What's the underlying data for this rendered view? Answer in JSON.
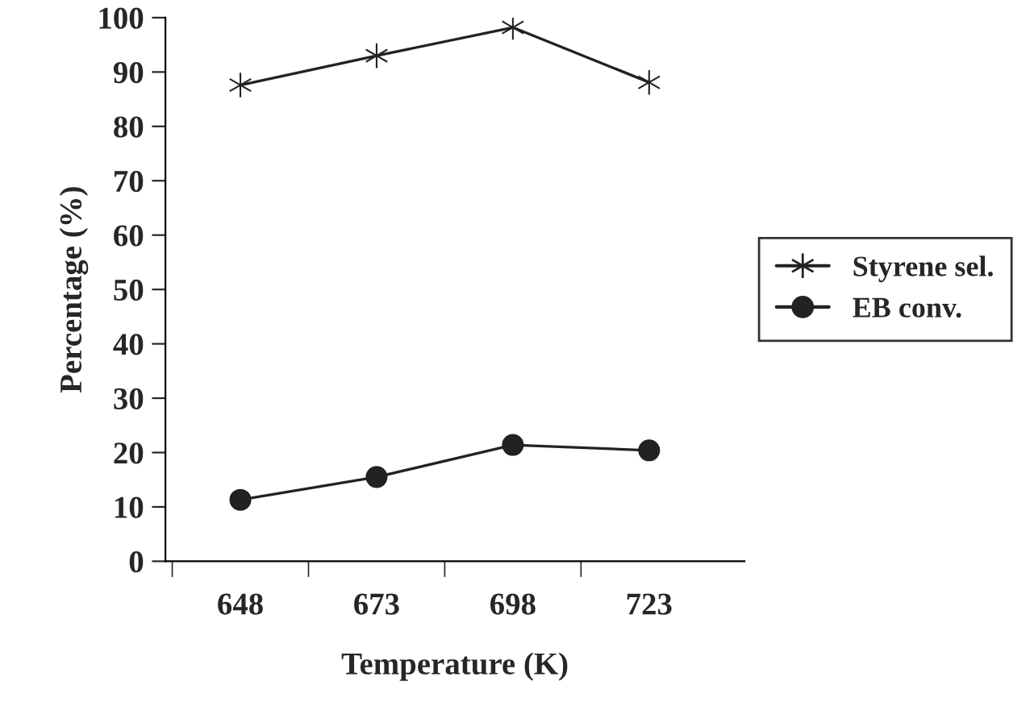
{
  "chart_data": {
    "type": "line",
    "xlabel": "Temperature (K)",
    "ylabel": "Percentage (%)",
    "categories": [
      "648",
      "673",
      "698",
      "723"
    ],
    "series": [
      {
        "name": "Styrene sel.",
        "color": "#222222",
        "marker": "cross",
        "values": [
          87.6,
          93.0,
          98.2,
          88.1
        ]
      },
      {
        "name": "EB conv.",
        "color": "#222222",
        "marker": "circle",
        "values": [
          11.3,
          15.5,
          21.4,
          20.4
        ]
      }
    ],
    "ylim": [
      0,
      100
    ],
    "yticks": [
      0,
      10,
      20,
      30,
      40,
      50,
      60,
      70,
      80,
      90,
      100
    ],
    "grid": false,
    "legend": "right"
  }
}
